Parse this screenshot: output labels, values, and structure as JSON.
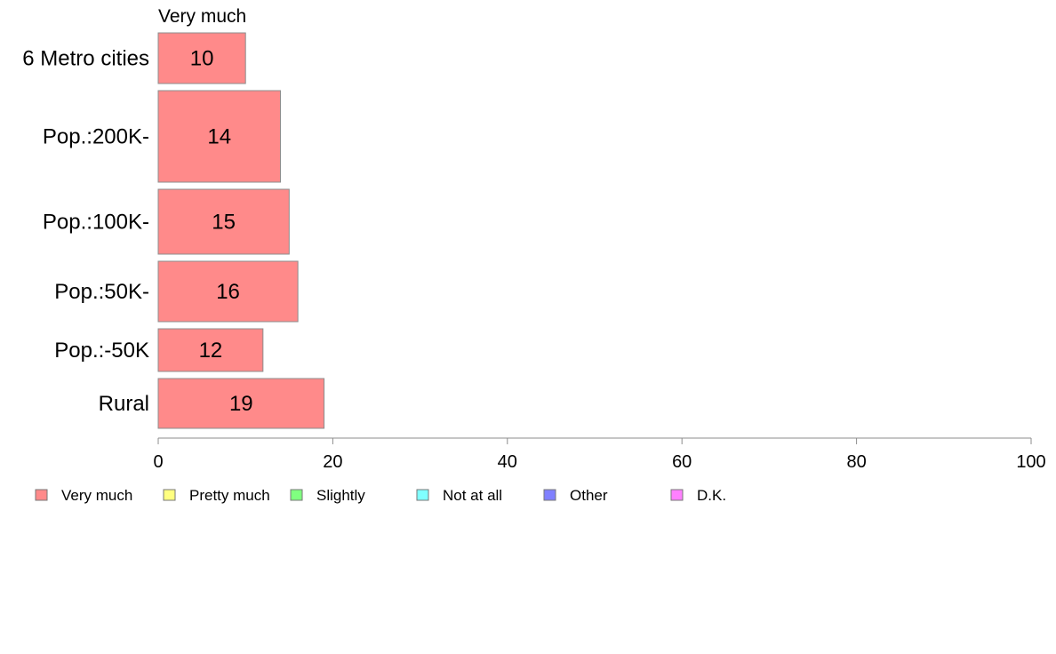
{
  "chart_data": {
    "type": "bar",
    "orientation": "horizontal",
    "series_heading": "Very much",
    "categories": [
      "6 Metro cities",
      "Pop.:200K-",
      "Pop.:100K-",
      "Pop.:50K-",
      "Pop.:-50K",
      "Rural"
    ],
    "series": [
      {
        "name": "Very much",
        "values": [
          10,
          14,
          15,
          16,
          12,
          19
        ],
        "color": "#ff8a8a"
      }
    ],
    "value_labels": [
      "10",
      "14",
      "15",
      "16",
      "12",
      "19"
    ],
    "xlim": [
      0,
      100
    ],
    "xticks": [
      0,
      20,
      40,
      60,
      80,
      100
    ],
    "xtick_labels": [
      "0",
      "20",
      "40",
      "60",
      "80",
      "100"
    ],
    "grid": false,
    "legend_position": "bottom",
    "legend": [
      {
        "label": "Very much",
        "color": "#ff8a8a"
      },
      {
        "label": "Pretty much",
        "color": "#ffff80"
      },
      {
        "label": "Slightly",
        "color": "#80ff80"
      },
      {
        "label": "Not at all",
        "color": "#80ffff"
      },
      {
        "label": "Other",
        "color": "#8080ff"
      },
      {
        "label": "D.K.",
        "color": "#ff80ff"
      }
    ]
  }
}
